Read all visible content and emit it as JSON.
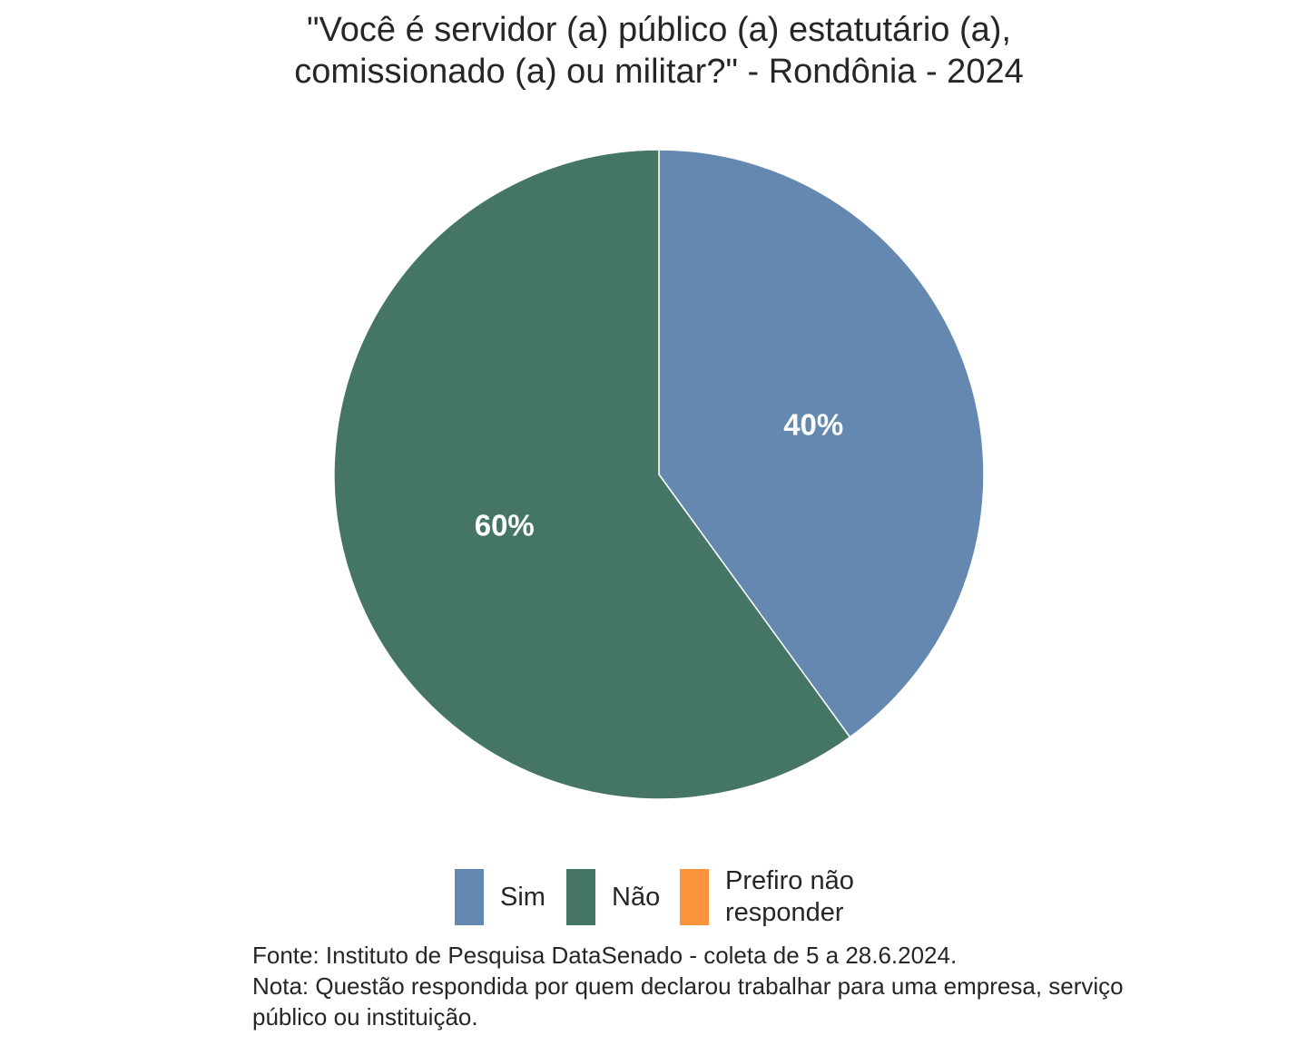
{
  "chart_data": {
    "type": "pie",
    "title_lines": [
      "\"Você é servidor (a) público (a) estatutário (a),",
      "comissionado (a) ou militar?\" - Rondônia - 2024"
    ],
    "slices": [
      {
        "name": "Sim",
        "value": 40,
        "label": "40%",
        "color": "#6488B0"
      },
      {
        "name": "Não",
        "value": 60,
        "label": "60%",
        "color": "#457564"
      },
      {
        "name": "Prefiro não responder",
        "value": 0,
        "label": "",
        "color": "#FB923C"
      }
    ],
    "start": "top, clockwise",
    "legend": {
      "placement": "bottom",
      "items": [
        {
          "label": "Sim",
          "color": "#6488B0"
        },
        {
          "label": "Não",
          "color": "#457564"
        },
        {
          "label_lines": [
            "Prefiro não",
            "responder"
          ],
          "color": "#FB923C"
        }
      ]
    },
    "caption_lines": [
      "Fonte: Instituto de Pesquisa DataSenado - coleta de 5 a 28.6.2024.",
      "Nota: Questão respondida por quem declarou trabalhar para uma empresa, serviço",
      "público ou instituição."
    ]
  }
}
